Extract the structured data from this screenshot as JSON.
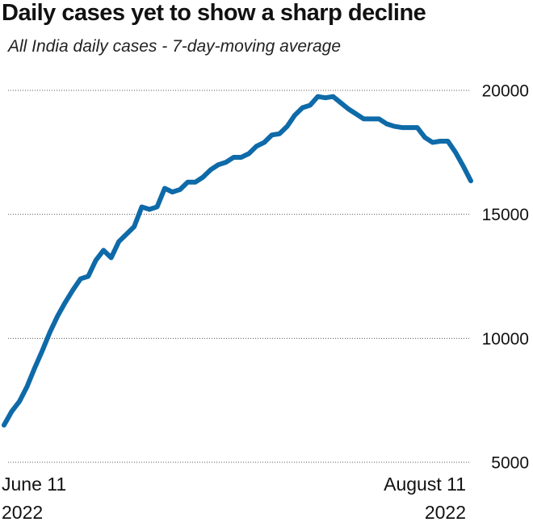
{
  "chart_data": {
    "type": "line",
    "title": "Daily cases yet to show a sharp decline",
    "subtitle": "All India daily cases - 7-day-moving average",
    "x": [
      "2022-06-11",
      "2022-06-12",
      "2022-06-13",
      "2022-06-14",
      "2022-06-15",
      "2022-06-16",
      "2022-06-17",
      "2022-06-18",
      "2022-06-19",
      "2022-06-20",
      "2022-06-21",
      "2022-06-22",
      "2022-06-23",
      "2022-06-24",
      "2022-06-25",
      "2022-06-26",
      "2022-06-27",
      "2022-06-28",
      "2022-06-29",
      "2022-06-30",
      "2022-07-01",
      "2022-07-02",
      "2022-07-03",
      "2022-07-04",
      "2022-07-05",
      "2022-07-06",
      "2022-07-07",
      "2022-07-08",
      "2022-07-09",
      "2022-07-10",
      "2022-07-11",
      "2022-07-12",
      "2022-07-13",
      "2022-07-14",
      "2022-07-15",
      "2022-07-16",
      "2022-07-17",
      "2022-07-18",
      "2022-07-19",
      "2022-07-20",
      "2022-07-21",
      "2022-07-22",
      "2022-07-23",
      "2022-07-24",
      "2022-07-25",
      "2022-07-26",
      "2022-07-27",
      "2022-07-28",
      "2022-07-29",
      "2022-07-30",
      "2022-07-31",
      "2022-08-01",
      "2022-08-02",
      "2022-08-03",
      "2022-08-04",
      "2022-08-05",
      "2022-08-06",
      "2022-08-07",
      "2022-08-08",
      "2022-08-09",
      "2022-08-10",
      "2022-08-11"
    ],
    "series": [
      {
        "name": "All India daily cases",
        "color": "#0e6aa8",
        "values": [
          6500,
          7050,
          7450,
          8050,
          8800,
          9500,
          10250,
          10900,
          11450,
          11950,
          12400,
          12500,
          13150,
          13550,
          13250,
          13900,
          14200,
          14500,
          15300,
          15200,
          15300,
          16050,
          15900,
          16000,
          16300,
          16300,
          16500,
          16800,
          17000,
          17100,
          17300,
          17300,
          17450,
          17750,
          17900,
          18200,
          18250,
          18550,
          19000,
          19300,
          19400,
          19750,
          19700,
          19750,
          19500,
          19250,
          19050,
          18850,
          18850,
          18850,
          18650,
          18550,
          18500,
          18500,
          18500,
          18100,
          17900,
          17950,
          17950,
          17500,
          16950,
          16350
        ]
      }
    ],
    "xlim": [
      "2022-06-11",
      "2022-08-11"
    ],
    "xticks": [
      {
        "value": "2022-06-11",
        "label": "June 11\n2022"
      },
      {
        "value": "2022-08-11",
        "label": "August 11\n2022"
      }
    ],
    "ylim": [
      5000,
      20000
    ],
    "yticks": [
      5000,
      10000,
      15000,
      20000
    ],
    "grid": true
  }
}
